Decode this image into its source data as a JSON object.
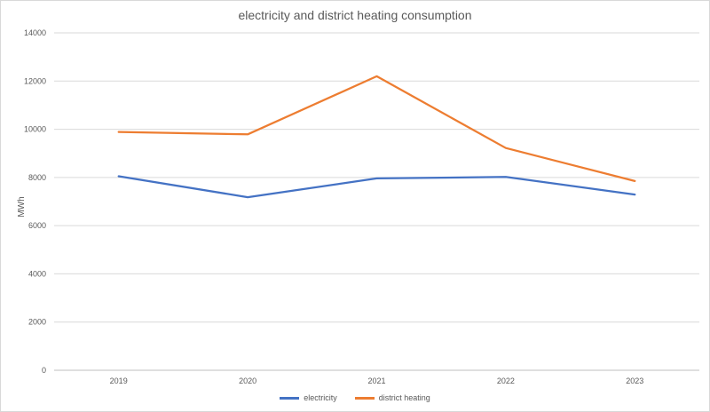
{
  "chart_data": {
    "type": "line",
    "title": "electricity and district heating consumption",
    "xlabel": "",
    "ylabel": "MWh",
    "categories": [
      "2019",
      "2020",
      "2021",
      "2022",
      "2023"
    ],
    "ylim": [
      0,
      14000
    ],
    "yticks": [
      0,
      2000,
      4000,
      6000,
      8000,
      10000,
      12000,
      14000
    ],
    "grid": true,
    "legend_position": "bottom",
    "series": [
      {
        "name": "electricity",
        "color": "#4472c4",
        "values": [
          8050,
          7180,
          7960,
          8020,
          7290
        ]
      },
      {
        "name": "district heating",
        "color": "#ed7d31",
        "values": [
          9890,
          9790,
          12200,
          9220,
          7850
        ]
      }
    ]
  }
}
